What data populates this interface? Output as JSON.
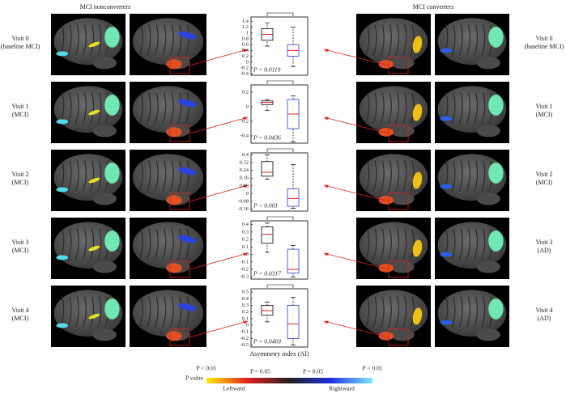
{
  "headers": {
    "left": "MCI nonconverters",
    "right": "MCI converters"
  },
  "rows": [
    {
      "left_label": "Visit 0",
      "left_stage": "(baseline MCI)",
      "left_stage_color": "#3ec43e",
      "right_label": "Visit 0",
      "right_stage": "(baseline MCI)",
      "right_stage_color": "#3ec43e"
    },
    {
      "left_label": "Visit 1",
      "left_stage": "(MCI)",
      "left_stage_color": "#3ec43e",
      "right_label": "Visit 1",
      "right_stage": "(MCI)",
      "right_stage_color": "#3ec43e"
    },
    {
      "left_label": "Visit 2",
      "left_stage": "(MCI)",
      "left_stage_color": "#3ec43e",
      "right_label": "Visit 2",
      "right_stage": "(MCI)",
      "right_stage_color": "#3ec43e"
    },
    {
      "left_label": "Visit 3",
      "left_stage": "(MCI)",
      "left_stage_color": "#3ec43e",
      "right_label": "Visit 3",
      "right_stage": "(AD)",
      "right_stage_color": "#7a3fa8"
    },
    {
      "left_label": "Visit 4",
      "left_stage": "(MCI)",
      "left_stage_color": "#3ec43e",
      "right_label": "Visit 4",
      "right_stage": "(AD)",
      "right_stage_color": "#7a3fa8"
    }
  ],
  "chart_data": [
    {
      "type": "box",
      "annotation": "P = 0.0119",
      "ylim": [
        -0.45,
        1.55
      ],
      "yticks": [
        1.4,
        1.2,
        1,
        0.8,
        0.6,
        0.4,
        0.2,
        0,
        -0.2,
        -0.4
      ],
      "boxes": [
        {
          "color": "#000000",
          "whisker_low": 0.55,
          "q1": 0.75,
          "median": 0.95,
          "q3": 1.15,
          "whisker_high": 1.35
        },
        {
          "color": "#2a3fd0",
          "whisker_low": -0.15,
          "q1": 0.2,
          "median": 0.4,
          "q3": 0.6,
          "whisker_high": 1.2
        }
      ]
    },
    {
      "type": "box",
      "annotation": "P = 0.0436",
      "ylim": [
        -0.5,
        0.3
      ],
      "yticks": [
        0.2,
        0,
        -0.2,
        -0.4
      ],
      "boxes": [
        {
          "color": "#000000",
          "whisker_low": -0.05,
          "q1": 0.03,
          "median": 0.06,
          "q3": 0.08,
          "whisker_high": 0.1
        },
        {
          "color": "#2a3fd0",
          "whisker_low": -0.48,
          "q1": -0.3,
          "median": -0.1,
          "q3": 0.1,
          "whisker_high": 0.15
        }
      ]
    },
    {
      "type": "box",
      "annotation": "P < 0.001",
      "ylim": [
        -0.18,
        0.42
      ],
      "yticks": [
        0.4,
        0.32,
        0.24,
        0.16,
        0.08,
        0,
        -0.08,
        -0.16
      ],
      "boxes": [
        {
          "color": "#000000",
          "whisker_low": 0.15,
          "q1": 0.18,
          "median": 0.22,
          "q3": 0.33,
          "whisker_high": 0.4
        },
        {
          "color": "#2a3fd0",
          "whisker_low": -0.15,
          "q1": -0.13,
          "median": -0.05,
          "q3": 0.05,
          "whisker_high": 0.3
        }
      ]
    },
    {
      "type": "box",
      "annotation": "P = 0.0317",
      "ylim": [
        -0.33,
        0.45
      ],
      "yticks": [
        0.4,
        0.3,
        0.2,
        0.1,
        0,
        -0.1,
        -0.2,
        -0.3
      ],
      "boxes": [
        {
          "color": "#000000",
          "whisker_low": 0.03,
          "q1": 0.15,
          "median": 0.27,
          "q3": 0.37,
          "whisker_high": 0.42
        },
        {
          "color": "#2a3fd0",
          "whisker_low": -0.3,
          "q1": -0.25,
          "median": -0.2,
          "q3": 0.07,
          "whisker_high": 0.12
        }
      ]
    },
    {
      "type": "box",
      "annotation": "P = 0.0469",
      "xlabel": "Asymmetry index (AI)",
      "ylim": [
        -0.33,
        0.55
      ],
      "yticks": [
        0.5,
        0.4,
        0.3,
        0.2,
        0.1,
        0,
        -0.1,
        -0.2,
        -0.3
      ],
      "boxes": [
        {
          "color": "#000000",
          "whisker_low": 0.05,
          "q1": 0.15,
          "median": 0.22,
          "q3": 0.3,
          "whisker_high": 0.35
        },
        {
          "color": "#2a3fd0",
          "whisker_low": -0.3,
          "q1": -0.2,
          "median": 0.02,
          "q3": 0.3,
          "whisker_high": 0.42
        }
      ]
    }
  ],
  "colorbar": {
    "title": "P value",
    "labels": [
      "P < 0.01",
      "P = 0.05",
      "P = 0.05",
      "P < 0.01"
    ],
    "left": "Leftward",
    "right": "Rightward",
    "colors": [
      "#ffee00",
      "#e02020",
      "#202020",
      "#2030e0",
      "#7fe8ff"
    ]
  }
}
